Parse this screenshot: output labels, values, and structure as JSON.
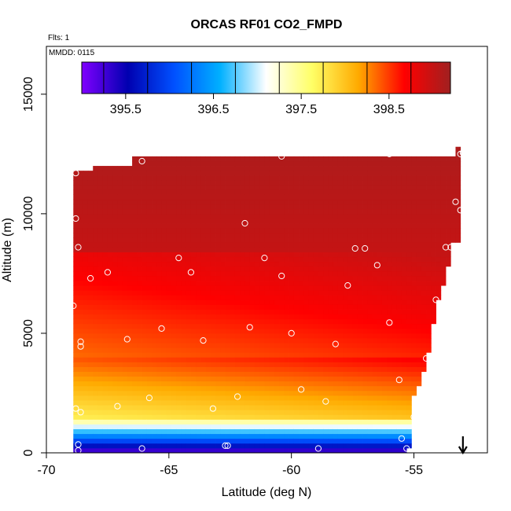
{
  "chart_data": {
    "type": "heatmap",
    "title": "ORCAS RF01 CO2_FMPD",
    "flights_label": "Flts: 1",
    "date_label": "MMDD: 0115",
    "xlabel": "Latitude (deg N)",
    "ylabel": "Altitude (m)",
    "xlim": [
      -70,
      -52
    ],
    "ylim": [
      0,
      17000
    ],
    "x_ticks": [
      -70,
      -65,
      -60,
      -55
    ],
    "x_tick_labels": [
      "-70",
      "-65",
      "-60",
      "-55"
    ],
    "y_ticks": [
      0,
      5000,
      10000,
      15000
    ],
    "y_tick_labels": [
      "0",
      "5000",
      "10000",
      "15000"
    ],
    "colorbar": {
      "min": 395.0,
      "max": 399.2,
      "ticks": [
        395.5,
        396.5,
        397.5,
        398.5
      ],
      "tick_labels": [
        "395.5",
        "396.5",
        "397.5",
        "398.5"
      ],
      "colors": [
        "#8000ff",
        "#0000b0",
        "#0050ff",
        "#00b0ff",
        "#ffffff",
        "#ffff66",
        "#ffaa00",
        "#ff0000",
        "#a02020"
      ]
    },
    "flight_track_points": [
      {
        "lat": -68.8,
        "alt": 11700
      },
      {
        "lat": -68.8,
        "alt": 9800
      },
      {
        "lat": -68.7,
        "alt": 8600
      },
      {
        "lat": -68.9,
        "alt": 6150
      },
      {
        "lat": -68.6,
        "alt": 4650
      },
      {
        "lat": -68.6,
        "alt": 4450
      },
      {
        "lat": -68.8,
        "alt": 1850
      },
      {
        "lat": -68.6,
        "alt": 1700
      },
      {
        "lat": -68.7,
        "alt": 350
      },
      {
        "lat": -68.7,
        "alt": 100
      },
      {
        "lat": -68.2,
        "alt": 7300
      },
      {
        "lat": -67.5,
        "alt": 7550
      },
      {
        "lat": -66.7,
        "alt": 4750
      },
      {
        "lat": -67.1,
        "alt": 1950
      },
      {
        "lat": -66.1,
        "alt": 12200
      },
      {
        "lat": -66.1,
        "alt": 180
      },
      {
        "lat": -65.8,
        "alt": 2300
      },
      {
        "lat": -64.6,
        "alt": 8150
      },
      {
        "lat": -65.3,
        "alt": 5200
      },
      {
        "lat": -64.1,
        "alt": 7550
      },
      {
        "lat": -63.6,
        "alt": 4700
      },
      {
        "lat": -63.2,
        "alt": 1850
      },
      {
        "lat": -62.7,
        "alt": 300
      },
      {
        "lat": -62.6,
        "alt": 300
      },
      {
        "lat": -62.2,
        "alt": 2350
      },
      {
        "lat": -61.9,
        "alt": 9600
      },
      {
        "lat": -61.7,
        "alt": 5250
      },
      {
        "lat": -61.1,
        "alt": 8150
      },
      {
        "lat": -60.4,
        "alt": 7400
      },
      {
        "lat": -60.4,
        "alt": 12400
      },
      {
        "lat": -60.0,
        "alt": 5000
      },
      {
        "lat": -59.6,
        "alt": 2650
      },
      {
        "lat": -58.9,
        "alt": 180
      },
      {
        "lat": -58.6,
        "alt": 2150
      },
      {
        "lat": -58.2,
        "alt": 4550
      },
      {
        "lat": -57.7,
        "alt": 7000
      },
      {
        "lat": -57.4,
        "alt": 8550
      },
      {
        "lat": -57.0,
        "alt": 8550
      },
      {
        "lat": -56.5,
        "alt": 7850
      },
      {
        "lat": -56.0,
        "alt": 12500
      },
      {
        "lat": -56.0,
        "alt": 5450
      },
      {
        "lat": -55.6,
        "alt": 3050
      },
      {
        "lat": -55.0,
        "alt": 1500
      },
      {
        "lat": -54.5,
        "alt": 3950
      },
      {
        "lat": -54.1,
        "alt": 6400
      },
      {
        "lat": -53.7,
        "alt": 8600
      },
      {
        "lat": -53.5,
        "alt": 8600
      },
      {
        "lat": -53.3,
        "alt": 10500
      },
      {
        "lat": -53.1,
        "alt": 12500
      },
      {
        "lat": -53.0,
        "alt": 12550
      },
      {
        "lat": -53.1,
        "alt": 10150
      },
      {
        "lat": -55.3,
        "alt": 180
      },
      {
        "lat": -55.5,
        "alt": 600
      }
    ],
    "arrow_marker": {
      "lat": -53.0,
      "direction": "down"
    }
  }
}
